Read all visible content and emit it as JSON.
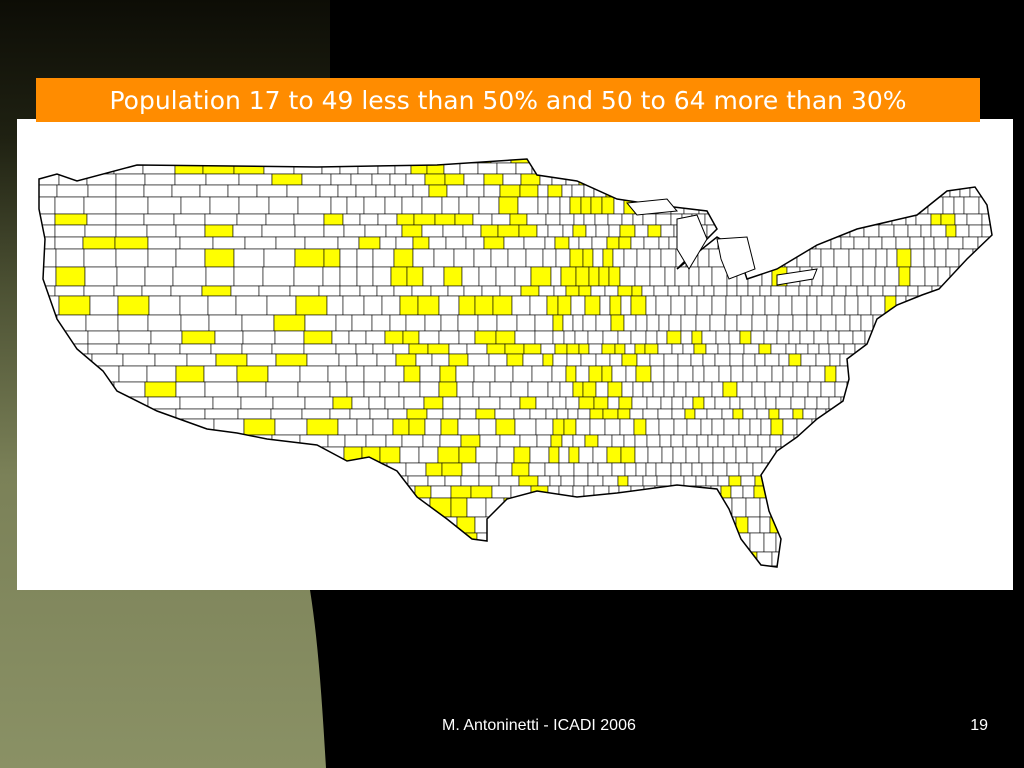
{
  "slide": {
    "title": "Population 17 to 49 less than 50% and 50 to 64 more than 30%",
    "footer_author": "M. Antoninetti - ICADI 2006",
    "page_number": "19"
  },
  "map": {
    "subject": "United States counties",
    "highlight_color": "#ffff00",
    "base_color": "#ffffff",
    "border_color": "#000000"
  },
  "colors": {
    "title_bar": "#ff8c00",
    "background": "#000000",
    "side_gradient_bottom": "#8a9165"
  }
}
